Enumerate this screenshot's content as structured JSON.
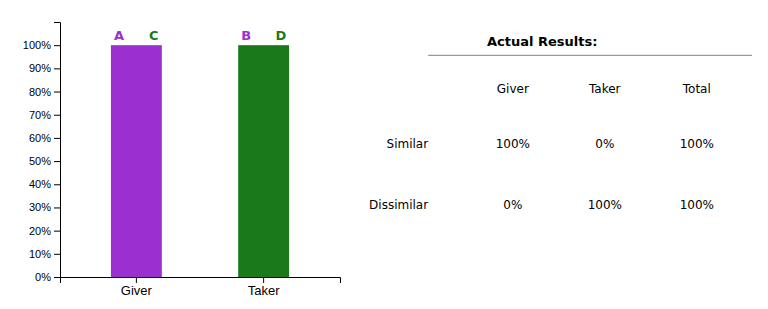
{
  "chart_data": {
    "type": "bar",
    "categories": [
      "Giver",
      "Taker"
    ],
    "values": [
      100,
      100
    ],
    "colors": [
      "#9B30D0",
      "#1A7A1A"
    ],
    "ylim": [
      0,
      110
    ],
    "yticks": [
      {
        "value": 0,
        "label": "0%"
      },
      {
        "value": 10,
        "label": "10%"
      },
      {
        "value": 20,
        "label": "20%"
      },
      {
        "value": 30,
        "label": "30%"
      },
      {
        "value": 40,
        "label": "40%"
      },
      {
        "value": 50,
        "label": "50%"
      },
      {
        "value": 60,
        "label": "60%"
      },
      {
        "value": 70,
        "label": "70%"
      },
      {
        "value": 80,
        "label": "80%"
      },
      {
        "value": 90,
        "label": "90%"
      },
      {
        "value": 100,
        "label": "100%"
      }
    ],
    "grid": false,
    "annotations": [
      {
        "text": "A",
        "color": "#9B30D0",
        "category": "Giver"
      },
      {
        "text": "C",
        "color": "#1A7A1A",
        "category": "Giver"
      },
      {
        "text": "B",
        "color": "#9B30D0",
        "category": "Taker"
      },
      {
        "text": "D",
        "color": "#1A7A1A",
        "category": "Taker"
      }
    ],
    "table": {
      "title": "Actual Results:",
      "col_headers": [
        "Giver",
        "Taker",
        "Total"
      ],
      "row_labels": [
        "Similar",
        "Dissimilar"
      ],
      "data": [
        [
          "100%",
          "0%",
          "100%"
        ],
        [
          "0%",
          "100%",
          "100%"
        ]
      ]
    }
  }
}
